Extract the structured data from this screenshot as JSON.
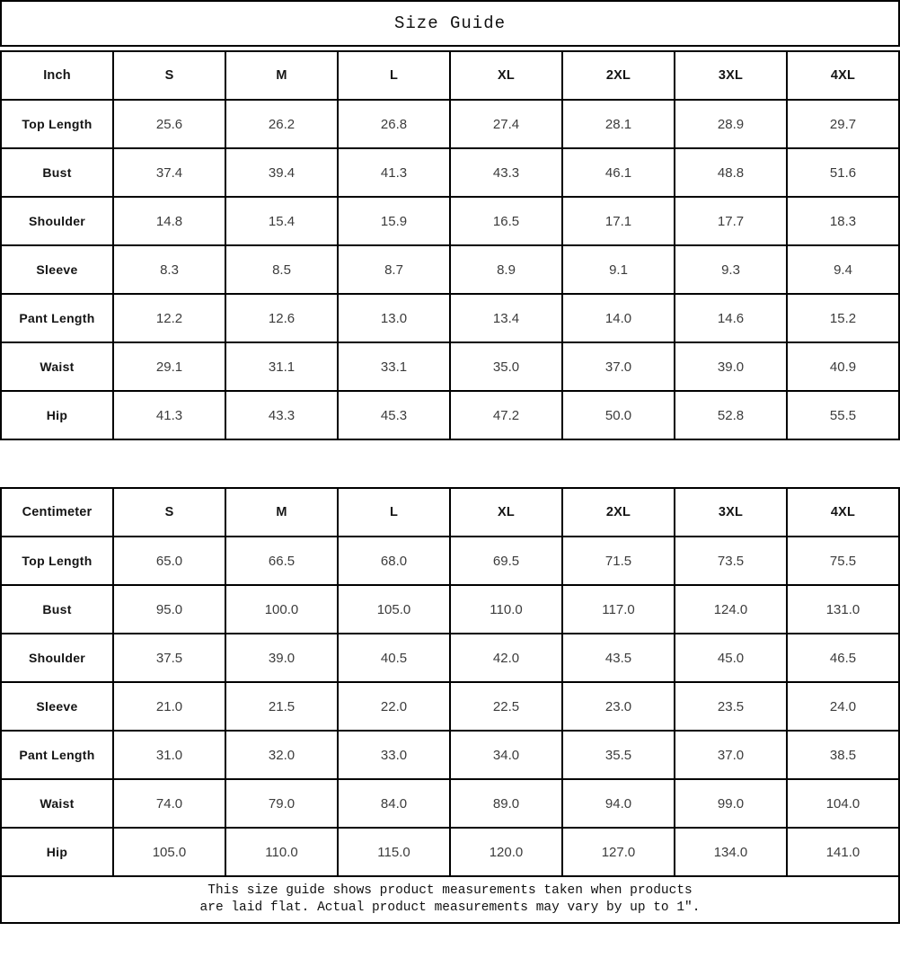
{
  "page": {
    "title": "Size Guide"
  },
  "tables": [
    {
      "unit": "Inch",
      "columns": [
        "S",
        "M",
        "L",
        "XL",
        "2XL",
        "3XL",
        "4XL"
      ],
      "rows": [
        {
          "label": "Top Length",
          "values": [
            "25.6",
            "26.2",
            "26.8",
            "27.4",
            "28.1",
            "28.9",
            "29.7"
          ]
        },
        {
          "label": "Bust",
          "values": [
            "37.4",
            "39.4",
            "41.3",
            "43.3",
            "46.1",
            "48.8",
            "51.6"
          ]
        },
        {
          "label": "Shoulder",
          "values": [
            "14.8",
            "15.4",
            "15.9",
            "16.5",
            "17.1",
            "17.7",
            "18.3"
          ]
        },
        {
          "label": "Sleeve",
          "values": [
            "8.3",
            "8.5",
            "8.7",
            "8.9",
            "9.1",
            "9.3",
            "9.4"
          ]
        },
        {
          "label": "Pant Length",
          "values": [
            "12.2",
            "12.6",
            "13.0",
            "13.4",
            "14.0",
            "14.6",
            "15.2"
          ]
        },
        {
          "label": "Waist",
          "values": [
            "29.1",
            "31.1",
            "33.1",
            "35.0",
            "37.0",
            "39.0",
            "40.9"
          ]
        },
        {
          "label": "Hip",
          "values": [
            "41.3",
            "43.3",
            "45.3",
            "47.2",
            "50.0",
            "52.8",
            "55.5"
          ]
        }
      ]
    },
    {
      "unit": "Centimeter",
      "columns": [
        "S",
        "M",
        "L",
        "XL",
        "2XL",
        "3XL",
        "4XL"
      ],
      "rows": [
        {
          "label": "Top Length",
          "values": [
            "65.0",
            "66.5",
            "68.0",
            "69.5",
            "71.5",
            "73.5",
            "75.5"
          ]
        },
        {
          "label": "Bust",
          "values": [
            "95.0",
            "100.0",
            "105.0",
            "110.0",
            "117.0",
            "124.0",
            "131.0"
          ]
        },
        {
          "label": "Shoulder",
          "values": [
            "37.5",
            "39.0",
            "40.5",
            "42.0",
            "43.5",
            "45.0",
            "46.5"
          ]
        },
        {
          "label": "Sleeve",
          "values": [
            "21.0",
            "21.5",
            "22.0",
            "22.5",
            "23.0",
            "23.5",
            "24.0"
          ]
        },
        {
          "label": "Pant Length",
          "values": [
            "31.0",
            "32.0",
            "33.0",
            "34.0",
            "35.5",
            "37.0",
            "38.5"
          ]
        },
        {
          "label": "Waist",
          "values": [
            "74.0",
            "79.0",
            "84.0",
            "89.0",
            "94.0",
            "99.0",
            "104.0"
          ]
        },
        {
          "label": "Hip",
          "values": [
            "105.0",
            "110.0",
            "115.0",
            "120.0",
            "127.0",
            "134.0",
            "141.0"
          ]
        }
      ]
    }
  ],
  "footnote": {
    "lines": [
      "This size guide shows product measurements taken when products",
      "are laid flat. Actual product measurements may vary by up to 1″."
    ]
  }
}
